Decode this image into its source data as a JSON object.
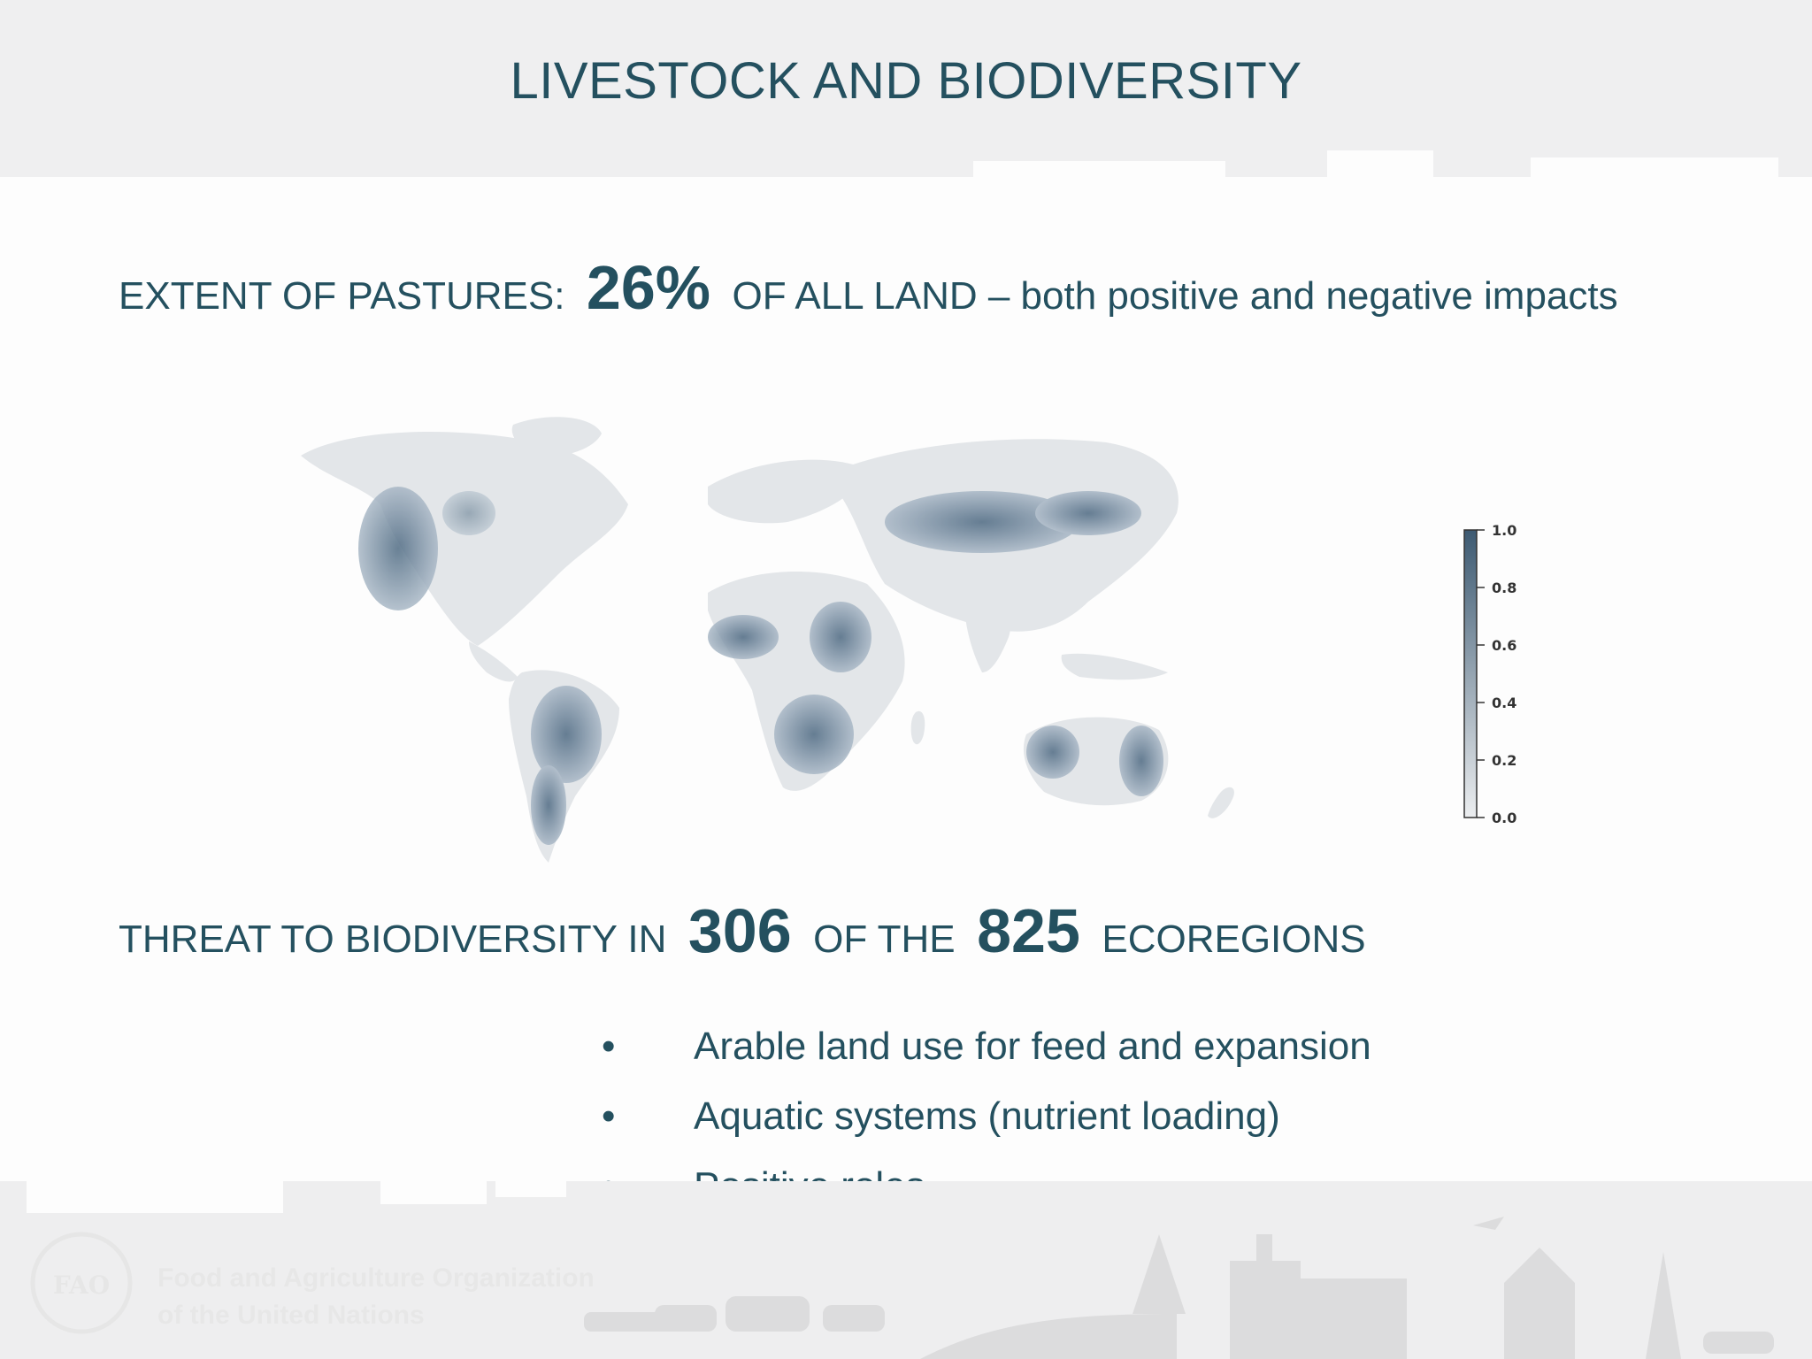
{
  "slide": {
    "title": "LIVESTOCK AND BIODIVERSITY",
    "pastures": {
      "prefix": "EXTENT OF PASTURES:",
      "value": "26%",
      "suffix": "OF ALL LAND – both positive and negative impacts"
    },
    "threat": {
      "prefix": "THREAT TO BIODIVERSITY IN",
      "count": "306",
      "middle": "OF THE",
      "total": "825",
      "suffix": "ECOREGIONS"
    },
    "bullets": [
      {
        "marker": "•",
        "text": "Arable land use for feed and expansion"
      },
      {
        "marker": "•",
        "text": "Aquatic systems (nutrient loading)"
      },
      {
        "marker": "•",
        "text": "Positive roles"
      }
    ]
  },
  "map": {
    "legend_ticks": [
      "1.0",
      "0.8",
      "0.6",
      "0.4",
      "0.2",
      "0.0"
    ],
    "color_low": "#e8eaec",
    "color_high": "#3d5a72"
  },
  "footer": {
    "org_line1": "Food and Agriculture Organization",
    "org_line2": "of the United Nations",
    "logo_letters": "FAO"
  },
  "colors": {
    "text": "#24505f",
    "band": "#efeff0"
  }
}
